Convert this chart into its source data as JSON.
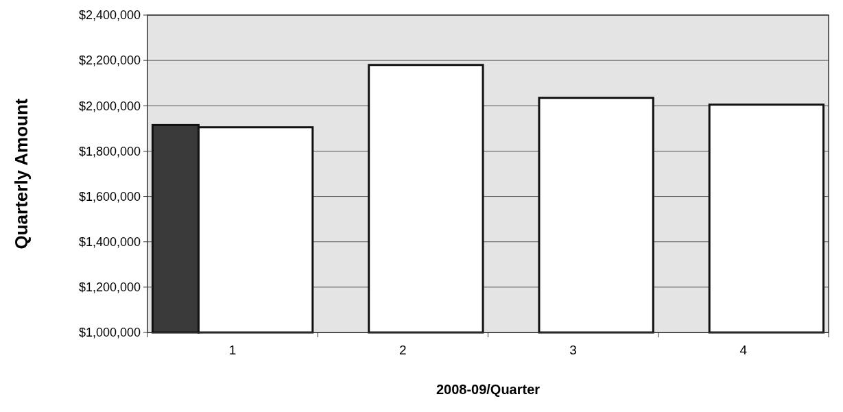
{
  "chart_data": {
    "type": "bar",
    "xlabel": "2008-09/Quarter",
    "ylabel": "Quarterly Amount",
    "categories": [
      "1",
      "2",
      "3",
      "4"
    ],
    "series": [
      {
        "color": "#3a3a3a",
        "values": [
          1915000,
          null,
          null,
          null
        ]
      },
      {
        "color": "#ffffff",
        "values": [
          1905000,
          2180000,
          2035000,
          2005000
        ]
      }
    ],
    "ylim": [
      1000000,
      2400000
    ],
    "yticks": [
      {
        "value": 1000000,
        "label": "$1,000,000"
      },
      {
        "value": 1200000,
        "label": "$1,200,000"
      },
      {
        "value": 1400000,
        "label": "$1,400,000"
      },
      {
        "value": 1600000,
        "label": "$1,600,000"
      },
      {
        "value": 1800000,
        "label": "$1,800,000"
      },
      {
        "value": 2000000,
        "label": "$2,000,000"
      },
      {
        "value": 2200000,
        "label": "$2,200,000"
      },
      {
        "value": 2400000,
        "label": "$2,400,000"
      }
    ],
    "grid": "y"
  }
}
